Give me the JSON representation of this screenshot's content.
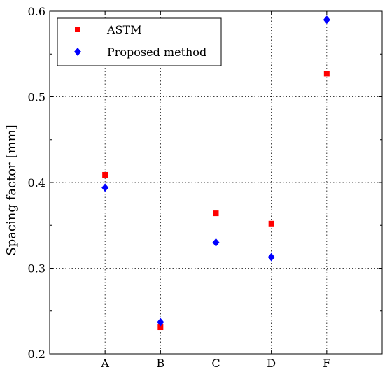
{
  "chart_data": {
    "type": "scatter",
    "categories": [
      "A",
      "B",
      "C",
      "D",
      "F"
    ],
    "xlabel": "",
    "ylabel": "Spacing factor [mm]",
    "ylim": [
      0.2,
      0.6
    ],
    "yticks": [
      "0.2",
      "0.3",
      "0.4",
      "0.5",
      "0.6"
    ],
    "grid": true,
    "legend_position": "top-left",
    "series": [
      {
        "name": "ASTM",
        "marker": "square",
        "color": "#ff0000",
        "values": [
          0.409,
          0.231,
          0.364,
          0.352,
          0.527
        ]
      },
      {
        "name": "Proposed method",
        "marker": "diamond",
        "color": "#0000ff",
        "values": [
          0.394,
          0.237,
          0.33,
          0.313,
          0.59
        ]
      }
    ]
  }
}
